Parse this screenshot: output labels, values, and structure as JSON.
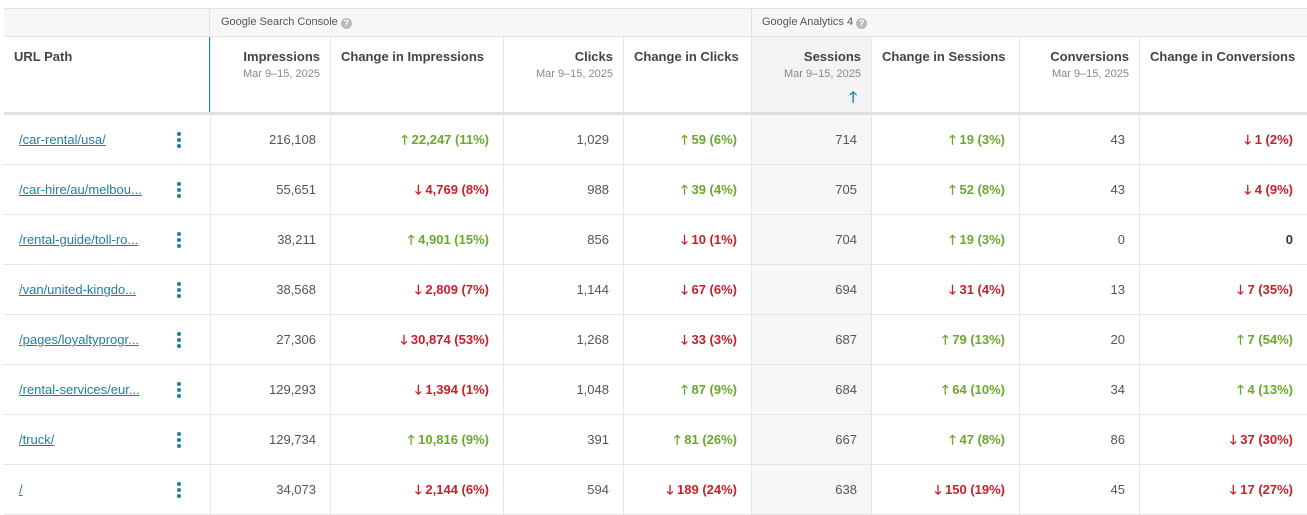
{
  "groups": {
    "gsc": "Google Search Console",
    "ga": "Google Analytics 4"
  },
  "columns": {
    "url": {
      "title": "URL Path"
    },
    "impressions": {
      "title": "Impressions",
      "sub": "Mar 9–15, 2025"
    },
    "change_impressions": {
      "title": "Change in Impressions"
    },
    "clicks": {
      "title": "Clicks",
      "sub": "Mar 9–15, 2025"
    },
    "change_clicks": {
      "title": "Change in Clicks"
    },
    "sessions": {
      "title": "Sessions",
      "sub": "Mar 9–15, 2025",
      "sort_glyph": "🡑"
    },
    "change_sessions": {
      "title": "Change in Sessions"
    },
    "conversions": {
      "title": "Conversions",
      "sub": "Mar 9–15, 2025"
    },
    "change_conversions": {
      "title": "Change in Conversions"
    }
  },
  "colors": {
    "up": "#6aa72c",
    "down": "#c8202a",
    "link": "#1d7fa0",
    "accent": "#1d8aa8"
  },
  "rows": [
    {
      "url": "/car-rental/usa/",
      "impressions": "216,108",
      "ci": "🡑 22,247 (11%)",
      "ci_dir": "up",
      "clicks": "1,029",
      "cc": "🡑 59 (6%)",
      "cc_dir": "up",
      "sessions": "714",
      "cs": "🡑 19 (3%)",
      "cs_dir": "up",
      "conversions": "43",
      "cv": "🡓 1 (2%)",
      "cv_dir": "down"
    },
    {
      "url": "/car-hire/au/melbou...",
      "impressions": "55,651",
      "ci": "🡓 4,769 (8%)",
      "ci_dir": "down",
      "clicks": "988",
      "cc": "🡑 39 (4%)",
      "cc_dir": "up",
      "sessions": "705",
      "cs": "🡑 52 (8%)",
      "cs_dir": "up",
      "conversions": "43",
      "cv": "🡓 4 (9%)",
      "cv_dir": "down"
    },
    {
      "url": "/rental-guide/toll-ro...",
      "impressions": "38,211",
      "ci": "🡑 4,901 (15%)",
      "ci_dir": "up",
      "clicks": "856",
      "cc": "🡓 10 (1%)",
      "cc_dir": "down",
      "sessions": "704",
      "cs": "🡑 19 (3%)",
      "cs_dir": "up",
      "conversions": "0",
      "cv": "0",
      "cv_dir": "zero"
    },
    {
      "url": "/van/united-kingdo...",
      "impressions": "38,568",
      "ci": "🡓 2,809 (7%)",
      "ci_dir": "down",
      "clicks": "1,144",
      "cc": "🡓 67 (6%)",
      "cc_dir": "down",
      "sessions": "694",
      "cs": "🡓 31 (4%)",
      "cs_dir": "down",
      "conversions": "13",
      "cv": "🡓 7 (35%)",
      "cv_dir": "down"
    },
    {
      "url": "/pages/loyaltyprogr...",
      "impressions": "27,306",
      "ci": "🡓 30,874 (53%)",
      "ci_dir": "down",
      "clicks": "1,268",
      "cc": "🡓 33 (3%)",
      "cc_dir": "down",
      "sessions": "687",
      "cs": "🡑 79 (13%)",
      "cs_dir": "up",
      "conversions": "20",
      "cv": "🡑 7 (54%)",
      "cv_dir": "up"
    },
    {
      "url": "/rental-services/eur...",
      "impressions": "129,293",
      "ci": "🡓 1,394 (1%)",
      "ci_dir": "down",
      "clicks": "1,048",
      "cc": "🡑 87 (9%)",
      "cc_dir": "up",
      "sessions": "684",
      "cs": "🡑 64 (10%)",
      "cs_dir": "up",
      "conversions": "34",
      "cv": "🡑 4 (13%)",
      "cv_dir": "up"
    },
    {
      "url": "/truck/",
      "impressions": "129,734",
      "ci": "🡑 10,816 (9%)",
      "ci_dir": "up",
      "clicks": "391",
      "cc": "🡑 81 (26%)",
      "cc_dir": "up",
      "sessions": "667",
      "cs": "🡑 47 (8%)",
      "cs_dir": "up",
      "conversions": "86",
      "cv": "🡓 37 (30%)",
      "cv_dir": "down"
    },
    {
      "url": "/",
      "impressions": "34,073",
      "ci": "🡓 2,144 (6%)",
      "ci_dir": "down",
      "clicks": "594",
      "cc": "🡓 189 (24%)",
      "cc_dir": "down",
      "sessions": "638",
      "cs": "🡓 150 (19%)",
      "cs_dir": "down",
      "conversions": "45",
      "cv": "🡓 17 (27%)",
      "cv_dir": "down"
    }
  ]
}
